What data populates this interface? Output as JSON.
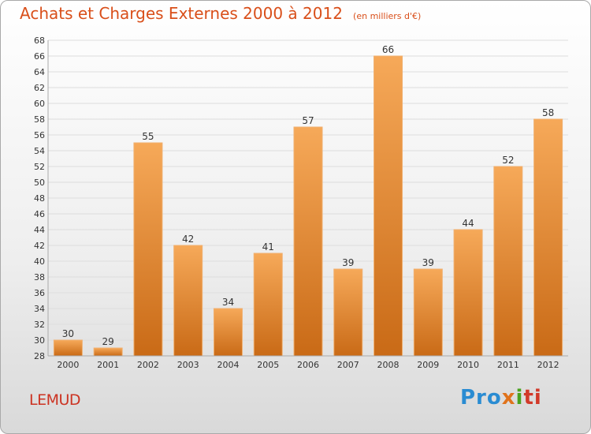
{
  "header": {
    "title": "Achats et Charges Externes 2000 à 2012",
    "unit": "(en milliers d'€)"
  },
  "footer": {
    "commune": "LEMUD",
    "logo": [
      "Pro",
      "x",
      "i",
      "ti"
    ]
  },
  "colors": {
    "title": "#d94f1a",
    "bar_light": "#f6a959",
    "bar_dark": "#c96a16",
    "commune": "#cc3322"
  },
  "chart_data": {
    "type": "bar",
    "categories": [
      "2000",
      "2001",
      "2002",
      "2003",
      "2004",
      "2005",
      "2006",
      "2007",
      "2008",
      "2009",
      "2010",
      "2011",
      "2012"
    ],
    "values": [
      30,
      29,
      55,
      42,
      34,
      41,
      57,
      39,
      66,
      39,
      44,
      52,
      58
    ],
    "ylim": [
      28,
      68
    ],
    "yticks": [
      28,
      30,
      32,
      34,
      36,
      38,
      40,
      42,
      44,
      46,
      48,
      50,
      52,
      54,
      56,
      58,
      60,
      62,
      64,
      66,
      68
    ],
    "grid": true,
    "legend": "none"
  }
}
